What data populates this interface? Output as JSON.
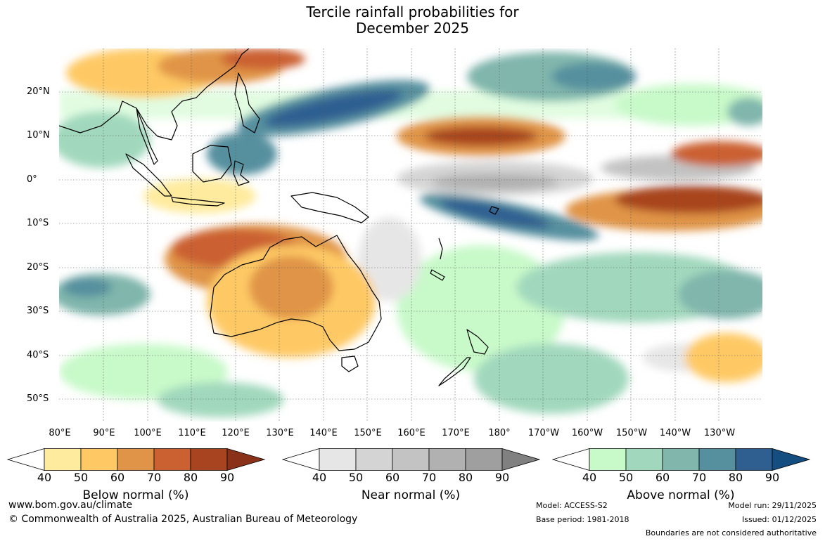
{
  "title": {
    "line1": "Tercile rainfall probabilities for",
    "line2": "December 2025"
  },
  "map": {
    "lat_labels": [
      "20°N",
      "10°N",
      "0°",
      "10°S",
      "20°S",
      "30°S",
      "40°S",
      "50°S"
    ],
    "lon_labels": [
      "80°E",
      "90°E",
      "100°E",
      "110°E",
      "120°E",
      "130°E",
      "140°E",
      "150°E",
      "160°E",
      "170°E",
      "180°",
      "170°W",
      "160°W",
      "150°W",
      "140°W",
      "130°W"
    ],
    "ocean_color": "#ffffff",
    "coastline_color": "#000000"
  },
  "legend": {
    "ticks": [
      "40",
      "50",
      "60",
      "70",
      "80",
      "90"
    ],
    "below": {
      "title": "Below normal (%)",
      "colors": [
        "#ffffff",
        "#ffeb9e",
        "#fec965",
        "#e09447",
        "#cb6031",
        "#a8441f",
        "#8a3219"
      ]
    },
    "near": {
      "title": "Near normal (%)",
      "colors": [
        "#ffffff",
        "#e6e6e6",
        "#d4d4d4",
        "#c3c3c3",
        "#b1b1b1",
        "#9f9f9f",
        "#808080"
      ]
    },
    "above": {
      "title": "Above normal (%)",
      "colors": [
        "#ffffff",
        "#c8f9c9",
        "#a1d8bd",
        "#80b6ac",
        "#56909f",
        "#2f5f91",
        "#144e81"
      ]
    }
  },
  "footer": {
    "website": "www.bom.gov.au/climate",
    "copyright": "© Commonwealth of Australia 2025, Australian Bureau of Meteorology",
    "model": "Model: ACCESS-S2",
    "base_period": "Base period: 1981-2018",
    "model_run": "Model run: 29/11/2025",
    "issued": "Issued: 01/12/2025",
    "disclaimer": "Boundaries are not considered authoritative"
  }
}
